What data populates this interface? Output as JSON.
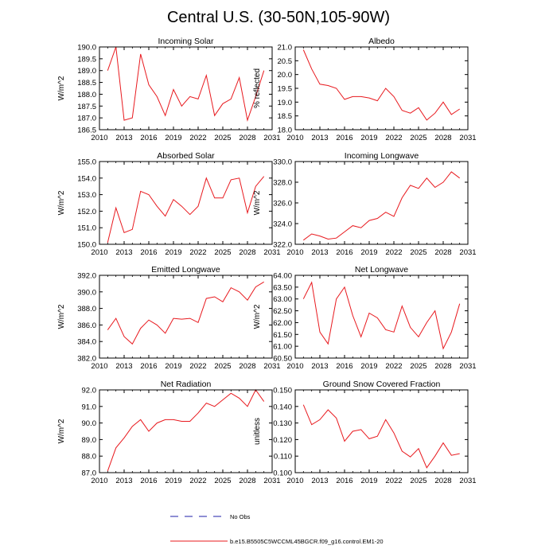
{
  "figure": {
    "title": "Central U.S. (30-50N,105-90W)"
  },
  "legend": {
    "items": [
      {
        "label": "No Obs",
        "color": "#1f1fa8",
        "style": "dashed"
      },
      {
        "label": "b.e15.B5505C5WCCML45BGCR.f09_g16.control.EM1-20",
        "color": "#e8191e",
        "style": "solid"
      }
    ]
  },
  "chart_data": [
    {
      "type": "line",
      "title": "Incoming Solar",
      "ylabel": "W/m^2",
      "xlim": [
        2010,
        2031
      ],
      "ylim": [
        186.5,
        190.0
      ],
      "xticks": [
        "2010",
        "2013",
        "2016",
        "2019",
        "2022",
        "2025",
        "2028",
        "2031"
      ],
      "yticks": [
        "186.5",
        "187.0",
        "187.5",
        "188.0",
        "188.5",
        "189.0",
        "189.5",
        "190.0"
      ],
      "series": [
        {
          "color": "#e8191e",
          "x": [
            2011,
            2012,
            2013,
            2014,
            2015,
            2016,
            2017,
            2018,
            2019,
            2020,
            2021,
            2022,
            2023,
            2024,
            2025,
            2026,
            2027,
            2028,
            2029,
            2030
          ],
          "values": [
            189.0,
            190.0,
            186.9,
            187.0,
            189.7,
            188.4,
            187.9,
            187.1,
            188.2,
            187.5,
            187.9,
            187.8,
            188.8,
            187.1,
            187.6,
            187.8,
            188.7,
            186.9,
            187.9,
            189.0
          ]
        }
      ]
    },
    {
      "type": "line",
      "title": "Albedo",
      "ylabel": "% reflected",
      "xlim": [
        2010,
        2031
      ],
      "ylim": [
        18.0,
        21.0
      ],
      "xticks": [
        "2010",
        "2013",
        "2016",
        "2019",
        "2022",
        "2025",
        "2028",
        "2031"
      ],
      "yticks": [
        "18.0",
        "18.5",
        "19.0",
        "19.5",
        "20.0",
        "20.5",
        "21.0"
      ],
      "series": [
        {
          "color": "#e8191e",
          "x": [
            2011,
            2012,
            2013,
            2014,
            2015,
            2016,
            2017,
            2018,
            2019,
            2020,
            2021,
            2022,
            2023,
            2024,
            2025,
            2026,
            2027,
            2028,
            2029,
            2030
          ],
          "values": [
            20.9,
            20.2,
            19.65,
            19.6,
            19.5,
            19.1,
            19.2,
            19.2,
            19.15,
            19.05,
            19.5,
            19.2,
            18.7,
            18.6,
            18.8,
            18.35,
            18.6,
            19.0,
            18.55,
            18.75
          ]
        }
      ]
    },
    {
      "type": "line",
      "title": "Absorbed Solar",
      "ylabel": "W/m^2",
      "xlim": [
        2010,
        2031
      ],
      "ylim": [
        150.0,
        155.0
      ],
      "xticks": [
        "2010",
        "2013",
        "2016",
        "2019",
        "2022",
        "2025",
        "2028",
        "2031"
      ],
      "yticks": [
        "150.0",
        "151.0",
        "152.0",
        "153.0",
        "154.0",
        "155.0"
      ],
      "series": [
        {
          "color": "#e8191e",
          "x": [
            2011,
            2012,
            2013,
            2014,
            2015,
            2016,
            2017,
            2018,
            2019,
            2020,
            2021,
            2022,
            2023,
            2024,
            2025,
            2026,
            2027,
            2028,
            2029,
            2030
          ],
          "values": [
            150.1,
            152.2,
            150.7,
            150.9,
            153.2,
            153.0,
            152.3,
            151.7,
            152.7,
            152.3,
            151.8,
            152.3,
            154.0,
            152.8,
            152.8,
            153.9,
            154.0,
            151.9,
            153.5,
            154.1
          ]
        }
      ]
    },
    {
      "type": "line",
      "title": "Incoming Longwave",
      "ylabel": "W/m^2",
      "xlim": [
        2010,
        2031
      ],
      "ylim": [
        322.0,
        330.0
      ],
      "xticks": [
        "2010",
        "2013",
        "2016",
        "2019",
        "2022",
        "2025",
        "2028",
        "2031"
      ],
      "yticks": [
        "322.0",
        "324.0",
        "326.0",
        "328.0",
        "330.0"
      ],
      "series": [
        {
          "color": "#e8191e",
          "x": [
            2011,
            2012,
            2013,
            2014,
            2015,
            2016,
            2017,
            2018,
            2019,
            2020,
            2021,
            2022,
            2023,
            2024,
            2025,
            2026,
            2027,
            2028,
            2029,
            2030
          ],
          "values": [
            322.4,
            323.0,
            322.8,
            322.5,
            322.6,
            323.2,
            323.8,
            323.6,
            324.3,
            324.5,
            325.1,
            324.7,
            326.5,
            327.7,
            327.4,
            328.4,
            327.5,
            328.0,
            329.0,
            328.4
          ]
        }
      ]
    },
    {
      "type": "line",
      "title": "Emitted Longwave",
      "ylabel": "W/m^2",
      "xlim": [
        2010,
        2031
      ],
      "ylim": [
        382.0,
        392.0
      ],
      "xticks": [
        "2010",
        "2013",
        "2016",
        "2019",
        "2022",
        "2025",
        "2028",
        "2031"
      ],
      "yticks": [
        "382.0",
        "384.0",
        "386.0",
        "388.0",
        "390.0",
        "392.0"
      ],
      "series": [
        {
          "color": "#e8191e",
          "x": [
            2011,
            2012,
            2013,
            2014,
            2015,
            2016,
            2017,
            2018,
            2019,
            2020,
            2021,
            2022,
            2023,
            2024,
            2025,
            2026,
            2027,
            2028,
            2029,
            2030
          ],
          "values": [
            385.4,
            386.8,
            384.6,
            383.7,
            385.6,
            386.6,
            386.0,
            385.0,
            386.8,
            386.7,
            386.8,
            386.3,
            389.2,
            389.4,
            388.8,
            390.5,
            390.0,
            389.0,
            390.6,
            391.2
          ]
        }
      ]
    },
    {
      "type": "line",
      "title": "Net Longwave",
      "ylabel": "W/m^2",
      "xlim": [
        2010,
        2031
      ],
      "ylim": [
        60.5,
        64.0
      ],
      "xticks": [
        "2010",
        "2013",
        "2016",
        "2019",
        "2022",
        "2025",
        "2028",
        "2031"
      ],
      "yticks": [
        "60.50",
        "61.00",
        "61.50",
        "62.00",
        "62.50",
        "63.00",
        "63.50",
        "64.00"
      ],
      "series": [
        {
          "color": "#e8191e",
          "x": [
            2011,
            2012,
            2013,
            2014,
            2015,
            2016,
            2017,
            2018,
            2019,
            2020,
            2021,
            2022,
            2023,
            2024,
            2025,
            2026,
            2027,
            2028,
            2029,
            2030
          ],
          "values": [
            63.0,
            63.7,
            61.6,
            61.1,
            63.0,
            63.5,
            62.3,
            61.4,
            62.4,
            62.2,
            61.7,
            61.6,
            62.7,
            61.8,
            61.4,
            62.0,
            62.5,
            60.9,
            61.6,
            62.8
          ]
        }
      ]
    },
    {
      "type": "line",
      "title": "Net Radiation",
      "ylabel": "W/m^2",
      "xlim": [
        2010,
        2031
      ],
      "ylim": [
        87.0,
        92.0
      ],
      "xticks": [
        "2010",
        "2013",
        "2016",
        "2019",
        "2022",
        "2025",
        "2028",
        "2031"
      ],
      "yticks": [
        "87.0",
        "88.0",
        "89.0",
        "90.0",
        "91.0",
        "92.0"
      ],
      "series": [
        {
          "color": "#e8191e",
          "x": [
            2011,
            2012,
            2013,
            2014,
            2015,
            2016,
            2017,
            2018,
            2019,
            2020,
            2021,
            2022,
            2023,
            2024,
            2025,
            2026,
            2027,
            2028,
            2029,
            2030
          ],
          "values": [
            87.1,
            88.5,
            89.1,
            89.8,
            90.2,
            89.5,
            90.0,
            90.2,
            90.2,
            90.1,
            90.1,
            90.6,
            91.2,
            91.0,
            91.4,
            91.8,
            91.5,
            91.0,
            92.0,
            91.3
          ]
        }
      ]
    },
    {
      "type": "line",
      "title": "Ground Snow Covered Fraction",
      "ylabel": "unitless",
      "xlim": [
        2010,
        2031
      ],
      "ylim": [
        0.1,
        0.15
      ],
      "xticks": [
        "2010",
        "2013",
        "2016",
        "2019",
        "2022",
        "2025",
        "2028",
        "2031"
      ],
      "yticks": [
        "0.100",
        "0.110",
        "0.120",
        "0.130",
        "0.140",
        "0.150"
      ],
      "series": [
        {
          "color": "#e8191e",
          "x": [
            2011,
            2012,
            2013,
            2014,
            2015,
            2016,
            2017,
            2018,
            2019,
            2020,
            2021,
            2022,
            2023,
            2024,
            2025,
            2026,
            2027,
            2028,
            2029,
            2030
          ],
          "values": [
            0.141,
            0.129,
            0.132,
            0.138,
            0.133,
            0.119,
            0.125,
            0.126,
            0.1205,
            0.122,
            0.132,
            0.124,
            0.113,
            0.1095,
            0.1145,
            0.103,
            0.11,
            0.118,
            0.1105,
            0.1115
          ]
        }
      ]
    }
  ]
}
